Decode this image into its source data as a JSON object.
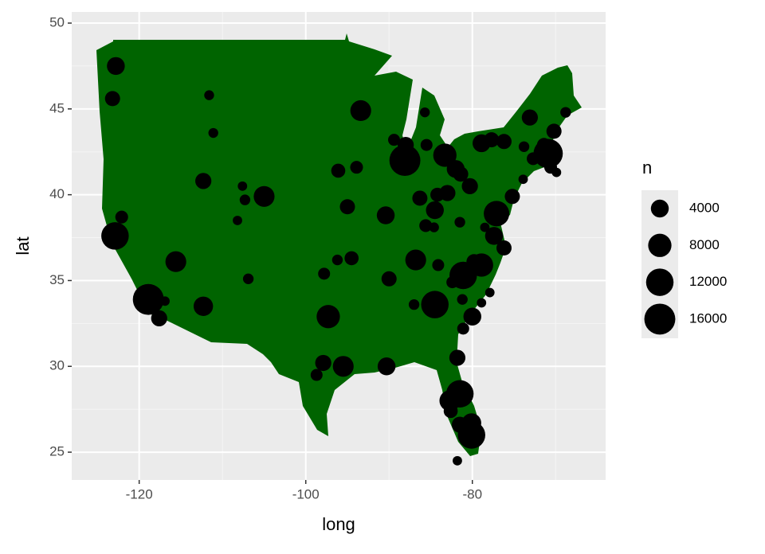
{
  "chart_data": {
    "type": "scatter",
    "x_label": "long",
    "y_label": "lat",
    "xlim": [
      -128.1,
      -64.0
    ],
    "ylim": [
      23.38,
      50.65
    ],
    "xticks": [
      -120,
      -100,
      -80
    ],
    "yticks": [
      25,
      30,
      35,
      40,
      45,
      50
    ],
    "grid": true,
    "legend": "right",
    "series": [
      {
        "name": "points",
        "color": "#000000",
        "x": [
          -122.8,
          -123.2,
          -111.6,
          -111.1,
          -112.3,
          -122.1,
          -122.9,
          -115.6,
          -118.9,
          -116.9,
          -117.6,
          -112.3,
          -107.6,
          -107.3,
          -105.0,
          -108.2,
          -106.9,
          -93.4,
          -96.1,
          -93.9,
          -95.0,
          -90.4,
          -96.2,
          -94.5,
          -97.8,
          -90.0,
          -97.3,
          -97.9,
          -95.5,
          -98.7,
          -90.3,
          -89.4,
          -88.0,
          -88.1,
          -85.7,
          -85.5,
          -83.3,
          -86.3,
          -84.2,
          -83.0,
          -82.0,
          -81.4,
          -80.3,
          -84.5,
          -85.6,
          -84.6,
          -81.5,
          -86.8,
          -84.1,
          -84.5,
          -87.0,
          -81.8,
          -81.5,
          -82.7,
          -82.6,
          -81.5,
          -80.1,
          -80.1,
          -81.8,
          -81.1,
          -82.4,
          -81.2,
          -81.1,
          -80.0,
          -78.9,
          -77.9,
          -78.9,
          -79.8,
          -76.2,
          -77.4,
          -78.5,
          -77.1,
          -75.2,
          -73.9,
          -72.7,
          -78.9,
          -77.7,
          -76.2,
          -73.8,
          -73.1,
          -70.2,
          -68.8,
          -70.9,
          -71.4,
          -70.6,
          -69.9
        ],
        "values": [
          47.5,
          45.6,
          45.8,
          43.6,
          40.8,
          38.7,
          37.6,
          36.1,
          33.9,
          33.8,
          32.8,
          33.5,
          40.5,
          39.7,
          39.9,
          38.5,
          35.1,
          44.9,
          41.4,
          41.6,
          39.3,
          38.8,
          36.2,
          36.3,
          35.4,
          35.1,
          32.9,
          30.2,
          30.0,
          29.5,
          30.0,
          43.2,
          42.9,
          42.0,
          44.8,
          42.9,
          42.3,
          39.8,
          40.0,
          40.1,
          41.5,
          41.2,
          40.5,
          39.1,
          38.2,
          38.1,
          38.4,
          36.2,
          35.9,
          33.6,
          33.6,
          30.5,
          28.4,
          28.0,
          27.4,
          26.6,
          26.7,
          26.0,
          24.5,
          35.3,
          34.9,
          33.9,
          32.2,
          32.9,
          33.7,
          34.3,
          35.9,
          36.1,
          36.9,
          37.6,
          38.1,
          38.9,
          39.9,
          40.9,
          42.1,
          43.0,
          43.2,
          43.1,
          42.8,
          44.5,
          43.7,
          44.8,
          42.4,
          42.9,
          41.6,
          41.3
        ],
        "sizes": [
          4000,
          2500,
          600,
          600,
          3000,
          1500,
          12000,
          6000,
          16000,
          500,
          3000,
          5000,
          500,
          800,
          6000,
          500,
          800,
          6000,
          2000,
          1500,
          2500,
          4000,
          800,
          2000,
          1200,
          2500,
          8000,
          3000,
          6000,
          1200,
          4000,
          1200,
          3000,
          16000,
          600,
          1200,
          8000,
          2500,
          2000,
          3000,
          4000,
          2500,
          3000,
          4000,
          1500,
          600,
          800,
          6000,
          1200,
          12000,
          800,
          3000,
          12000,
          6000,
          2000,
          3000,
          5000,
          12000,
          500,
          12000,
          1200,
          800,
          1200,
          4000,
          500,
          500,
          8000,
          2500,
          2500,
          4000,
          500,
          10000,
          2500,
          500,
          1500,
          4000,
          2500,
          2500,
          800,
          3000,
          2500,
          800,
          14000,
          2000,
          1500,
          500
        ]
      }
    ],
    "size_legend": {
      "title": "n",
      "breaks": [
        4000,
        8000,
        12000,
        16000
      ]
    }
  }
}
